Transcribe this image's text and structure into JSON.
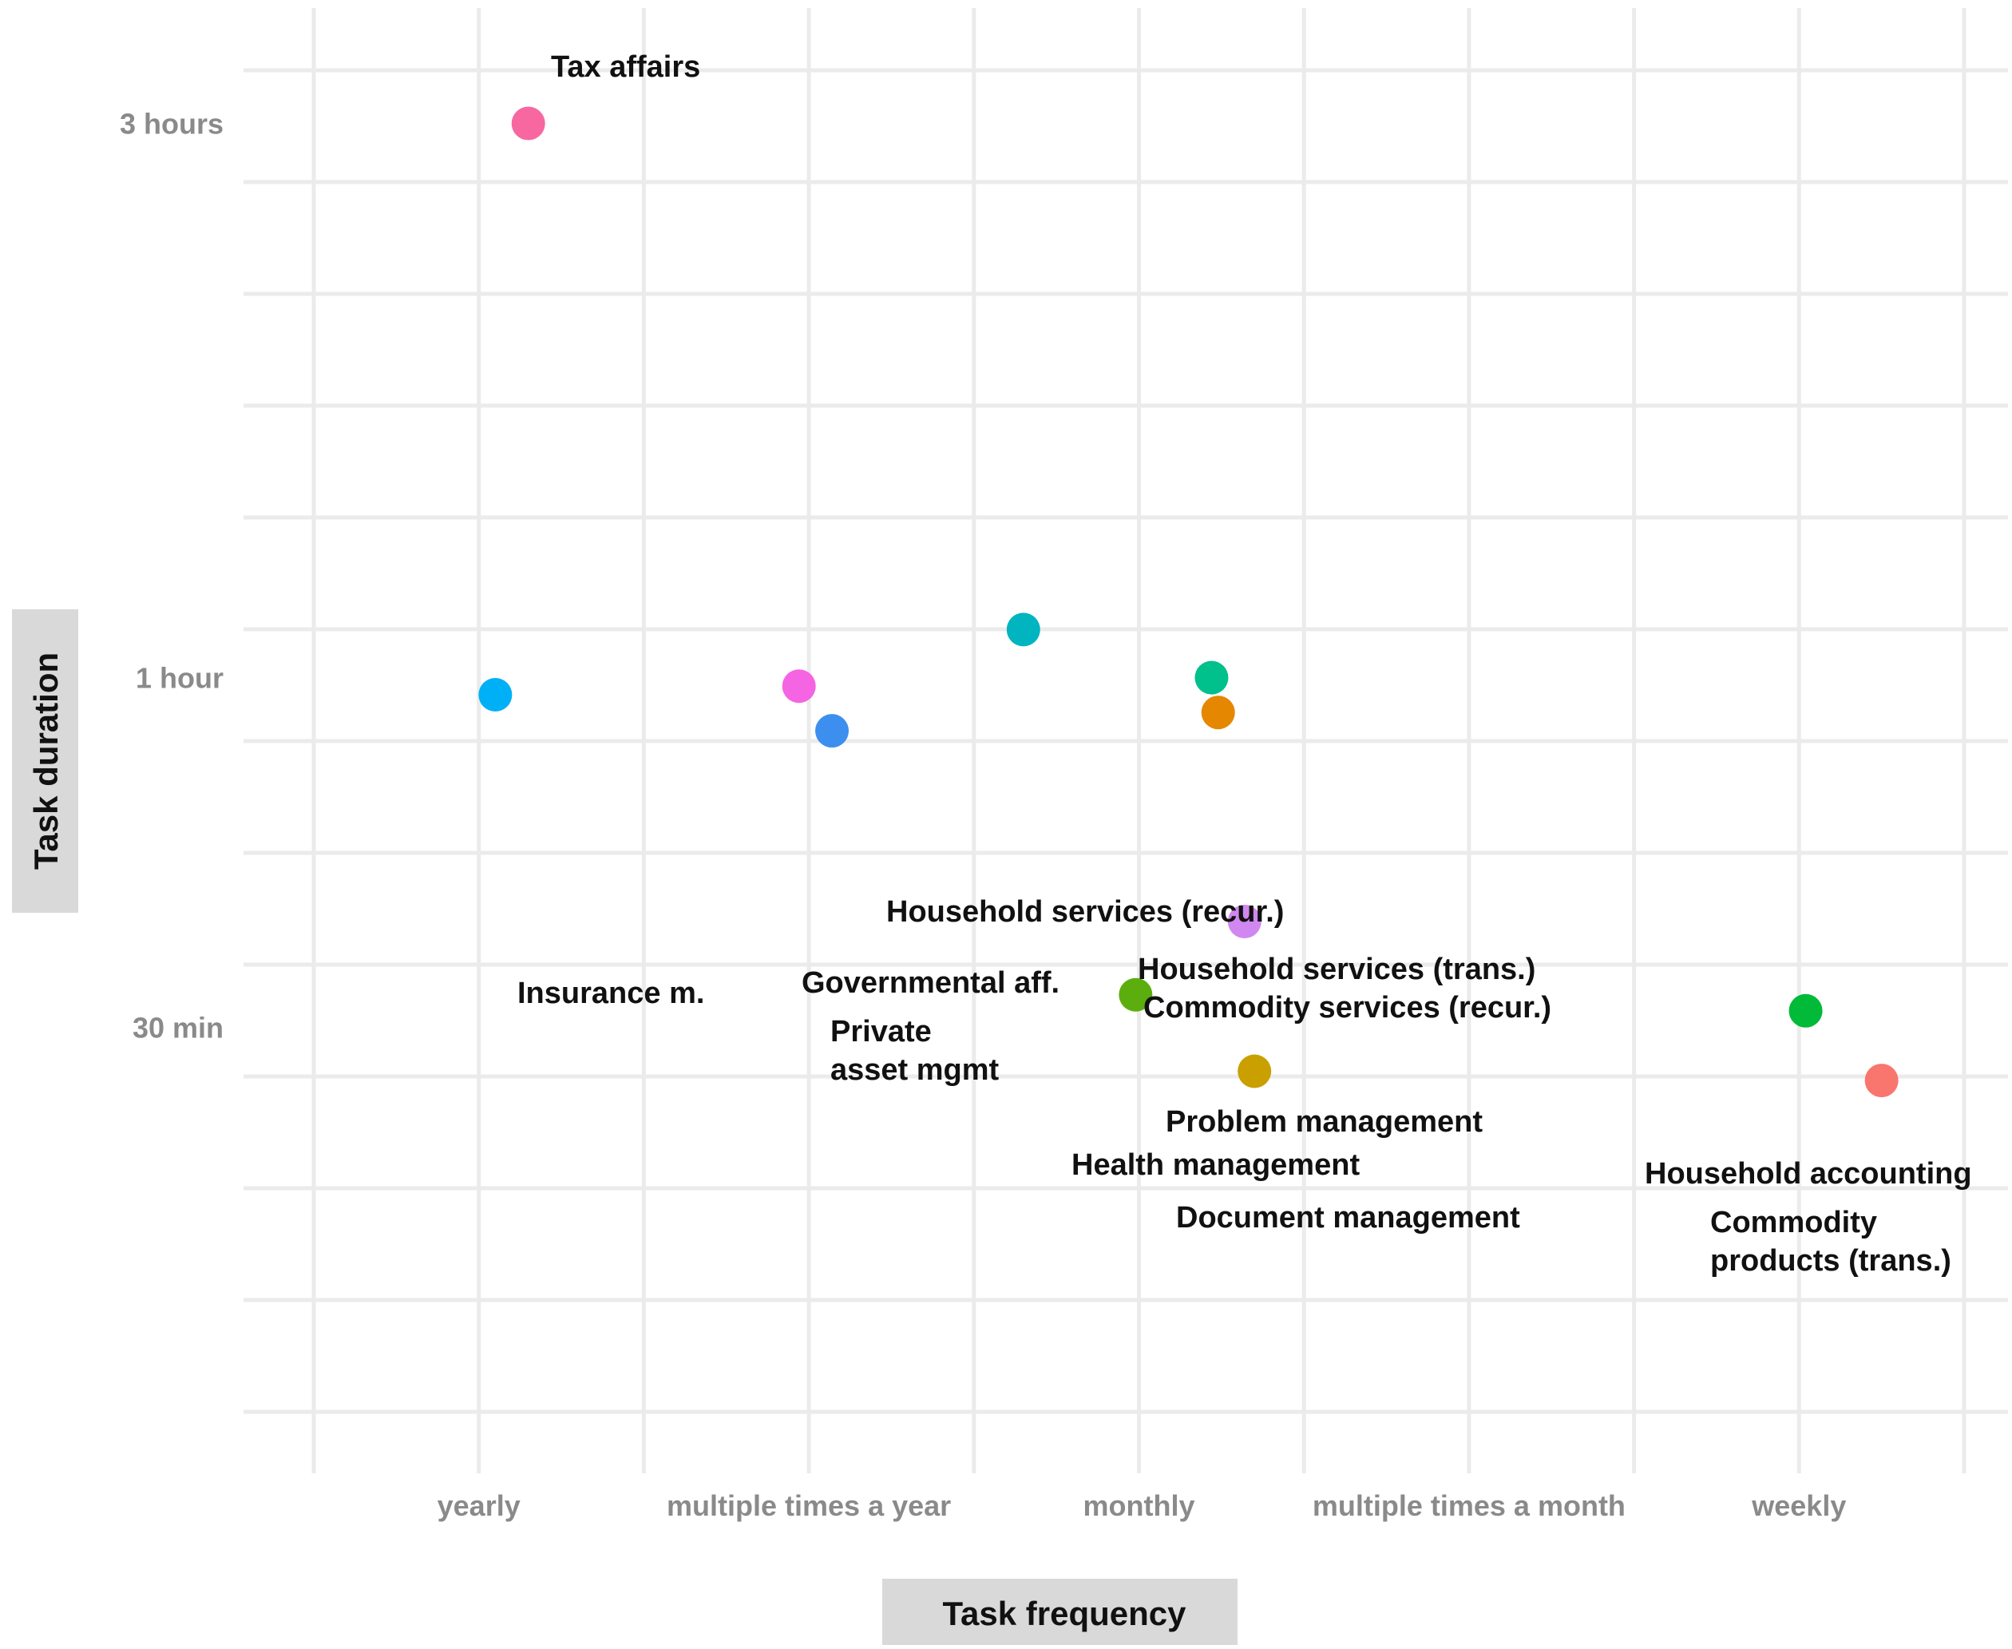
{
  "chart_data": {
    "type": "scatter",
    "xlabel": "Task frequency",
    "ylabel": "Task duration",
    "x_categories": [
      "yearly",
      "multiple times a year",
      "monthly",
      "multiple times a month",
      "weekly"
    ],
    "y_ticks": [
      {
        "label": "3 hours",
        "minutes": 180
      },
      {
        "label": "1 hour",
        "minutes": 60
      },
      {
        "label": "30 min",
        "minutes": 30
      }
    ],
    "y_scale": "log",
    "ylim_minutes": [
      14,
      200
    ],
    "xlim": [
      0.5,
      5.5
    ],
    "grid": true,
    "legend": "none",
    "points": [
      {
        "name": "Tax affairs",
        "x": 1.15,
        "y": 180,
        "color": "#f768a1"
      },
      {
        "name": "Household services (recur.)",
        "x": 2.65,
        "y": 66,
        "color": "#00b4c0"
      },
      {
        "name": "Insurance m.",
        "x": 1.05,
        "y": 58,
        "color": "#00b0f6"
      },
      {
        "name": "Governmental aff.",
        "x": 1.97,
        "y": 59,
        "color": "#f564e3"
      },
      {
        "name": "Private asset mgmt",
        "x": 2.07,
        "y": 54,
        "color": "#3d8fef"
      },
      {
        "name": "Household services (trans.)",
        "x": 3.22,
        "y": 60,
        "color": "#00c08b"
      },
      {
        "name": "Commodity services (recur.)",
        "x": 3.24,
        "y": 56,
        "color": "#e58700"
      },
      {
        "name": "Problem management",
        "x": 3.32,
        "y": 37,
        "color": "#d088f0"
      },
      {
        "name": "Health management",
        "x": 2.99,
        "y": 32,
        "color": "#5bae0e"
      },
      {
        "name": "Document management",
        "x": 3.35,
        "y": 27.5,
        "color": "#c9a000"
      },
      {
        "name": "Household accounting",
        "x": 5.02,
        "y": 31,
        "color": "#00ba38"
      },
      {
        "name": "Commodity products (trans.)",
        "x": 5.25,
        "y": 27,
        "color": "#f8766d"
      }
    ]
  },
  "point_labels": {
    "tax_affairs": "Tax affairs",
    "household_services_recur": "Household services (recur.)",
    "insurance": "Insurance m.",
    "governmental": "Governmental aff.",
    "private_asset_line1": "Private",
    "private_asset_line2": "asset mgmt",
    "household_services_trans": "Household services (trans.)",
    "commodity_services_recur": "Commodity services (recur.)",
    "problem_mgmt": "Problem management",
    "health_mgmt": "Health management",
    "document_mgmt": "Document management",
    "household_accounting": "Household accounting",
    "commodity_products_line1": "Commodity",
    "commodity_products_line2": "products (trans.)"
  }
}
